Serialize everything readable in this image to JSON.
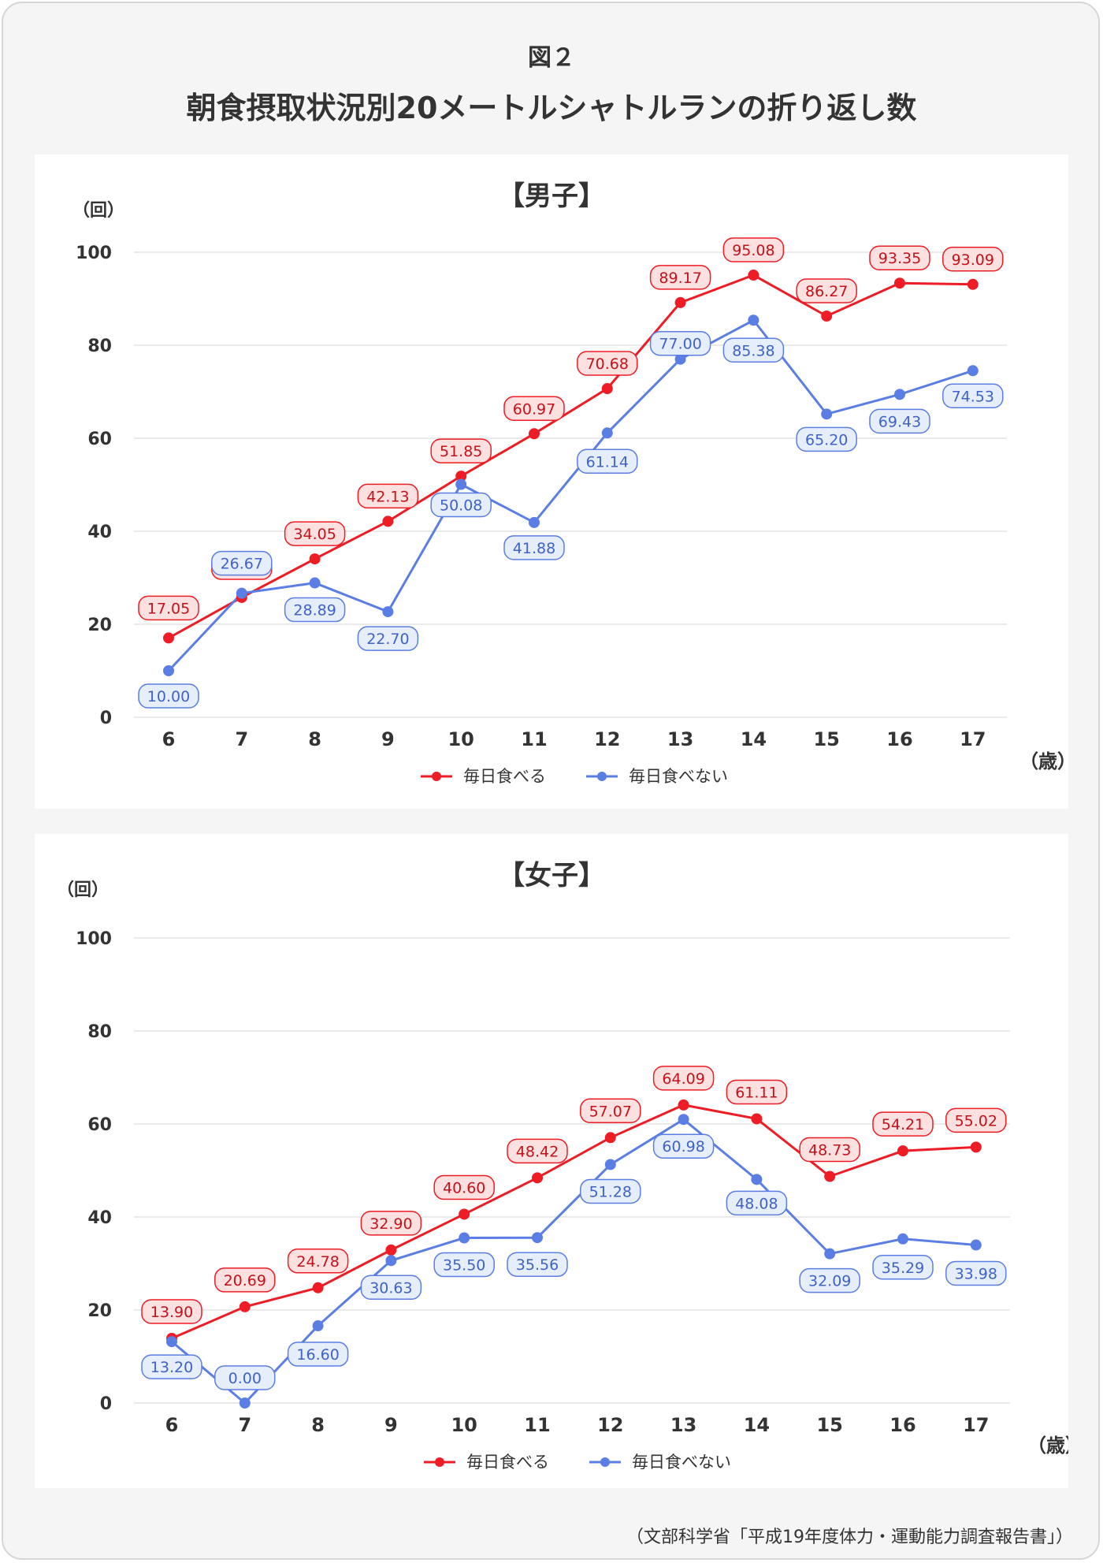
{
  "figure_label": "図２",
  "main_title": "朝食摂取状況別20メートルシャトルランの折り返し数",
  "source": "（文部科学省「平成19年度体力・運動能力調査報告書」）",
  "colors": {
    "series1": "#ee1c25",
    "series2": "#5b7ee5",
    "label1_bg": "#fde0e0",
    "label2_bg": "#e6edfb",
    "grid": "#e3e3e3",
    "text": "#333333"
  },
  "chart_data": [
    {
      "type": "line",
      "title": "【男子】",
      "ylabel": "（回）",
      "xlabel": "（歳）",
      "ylim": [
        0,
        100
      ],
      "yticks": [
        0,
        20,
        40,
        60,
        80,
        100
      ],
      "grid": true,
      "legend_position": "bottom",
      "categories": [
        "6",
        "7",
        "8",
        "9",
        "10",
        "11",
        "12",
        "13",
        "14",
        "15",
        "16",
        "17"
      ],
      "series": [
        {
          "name": "毎日食べる",
          "values": [
            17.05,
            25.77,
            34.05,
            42.13,
            51.85,
            60.97,
            70.68,
            89.17,
            95.08,
            86.27,
            93.35,
            93.09
          ],
          "labels": [
            "17.05",
            "25.77",
            "34.05",
            "42.13",
            "51.85",
            "60.97",
            "70.68",
            "89.17",
            "95.08",
            "86.27",
            "93.35",
            "93.09"
          ]
        },
        {
          "name": "毎日食べない",
          "values": [
            10.0,
            26.67,
            28.89,
            22.7,
            50.08,
            41.88,
            61.14,
            77.0,
            85.38,
            65.2,
            69.43,
            74.53
          ],
          "labels": [
            "10.00",
            "26.67",
            "28.89",
            "22.70",
            "50.08",
            "41.88",
            "61.14",
            "77.00",
            "85.38",
            "65.20",
            "69.43",
            "74.53"
          ]
        }
      ]
    },
    {
      "type": "line",
      "title": "【女子】",
      "ylabel": "（回）",
      "xlabel": "（歳）",
      "ylim": [
        0,
        100
      ],
      "yticks": [
        0,
        20,
        40,
        60,
        80,
        100
      ],
      "grid": true,
      "legend_position": "bottom",
      "categories": [
        "6",
        "7",
        "8",
        "9",
        "10",
        "11",
        "12",
        "13",
        "14",
        "15",
        "16",
        "17"
      ],
      "series": [
        {
          "name": "毎日食べる",
          "values": [
            13.9,
            20.69,
            24.78,
            32.9,
            40.6,
            48.42,
            57.07,
            64.09,
            61.11,
            48.73,
            54.21,
            55.02
          ],
          "labels": [
            "13.90",
            "20.69",
            "24.78",
            "32.90",
            "40.60",
            "48.42",
            "57.07",
            "64.09",
            "61.11",
            "48.73",
            "54.21",
            "55.02"
          ]
        },
        {
          "name": "毎日食べない",
          "values": [
            13.2,
            0.0,
            16.6,
            30.63,
            35.5,
            35.56,
            51.28,
            60.98,
            48.08,
            32.09,
            35.29,
            33.98
          ],
          "labels": [
            "13.20",
            "0.00",
            "16.60",
            "30.63",
            "35.50",
            "35.56",
            "51.28",
            "60.98",
            "48.08",
            "32.09",
            "35.29",
            "33.98"
          ]
        }
      ]
    }
  ]
}
